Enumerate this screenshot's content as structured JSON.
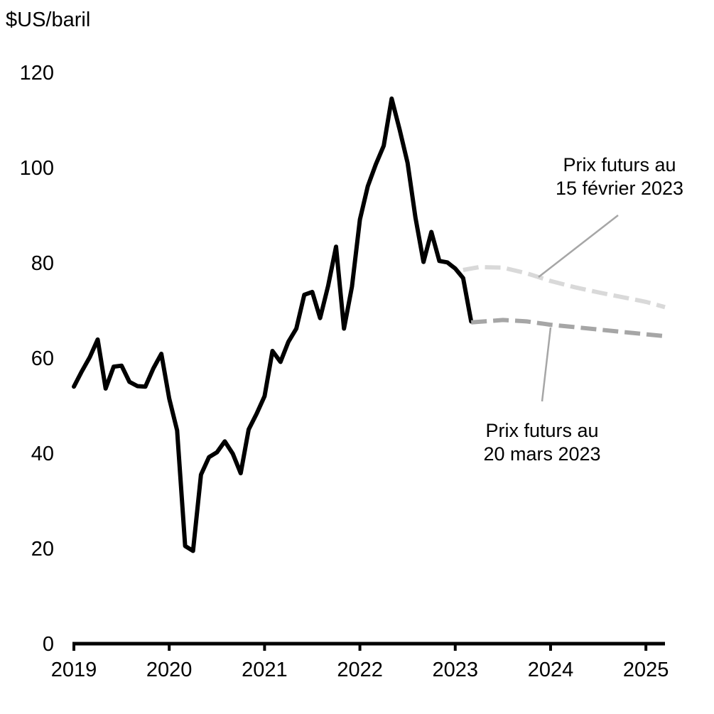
{
  "chart_data": {
    "type": "line",
    "title": "",
    "ylabel": "$US/baril",
    "xlabel": "",
    "xlim": [
      2019.0,
      2025.2
    ],
    "ylim": [
      0,
      120
    ],
    "yticks": [
      0,
      20,
      40,
      60,
      80,
      100,
      120
    ],
    "xticks": [
      "2019",
      "2020",
      "2021",
      "2022",
      "2023",
      "2024",
      "2025"
    ],
    "grid": false,
    "legend": "none",
    "series": [
      {
        "name": "",
        "style": "solid",
        "color": "#000000",
        "x": [
          2019.0,
          2019.083,
          2019.167,
          2019.25,
          2019.333,
          2019.417,
          2019.5,
          2019.583,
          2019.667,
          2019.75,
          2019.833,
          2019.917,
          2020.0,
          2020.083,
          2020.167,
          2020.25,
          2020.333,
          2020.417,
          2020.5,
          2020.583,
          2020.667,
          2020.75,
          2020.833,
          2020.917,
          2021.0,
          2021.083,
          2021.167,
          2021.25,
          2021.333,
          2021.417,
          2021.5,
          2021.583,
          2021.667,
          2021.75,
          2021.833,
          2021.917,
          2022.0,
          2022.083,
          2022.167,
          2022.25,
          2022.333,
          2022.417,
          2022.5,
          2022.583,
          2022.667,
          2022.75,
          2022.833,
          2022.917,
          2023.0,
          2023.083,
          2023.167
        ],
        "values": [
          54.0,
          57.2,
          60.2,
          63.9,
          53.6,
          58.2,
          58.4,
          55.0,
          54.1,
          54.0,
          57.8,
          60.9,
          51.5,
          44.8,
          20.5,
          19.5,
          35.5,
          39.2,
          40.2,
          42.5,
          39.9,
          35.8,
          45.0,
          48.3,
          52.0,
          61.5,
          59.2,
          63.4,
          66.2,
          73.3,
          73.9,
          68.4,
          75.2,
          83.4,
          66.2,
          75.0,
          89.1,
          96.1,
          100.7,
          104.6,
          114.5,
          108.0,
          101.0,
          89.5,
          80.2,
          86.5,
          80.4,
          80.1,
          78.8,
          76.8,
          67.7
        ]
      },
      {
        "name": "Prix futurs au 15 février 2023",
        "style": "dashed",
        "color": "#d9d9d9",
        "x": [
          2023.083,
          2023.25,
          2023.5,
          2023.75,
          2024.0,
          2024.25,
          2024.5,
          2024.75,
          2025.0,
          2025.2
        ],
        "values": [
          78.5,
          79.1,
          79.0,
          77.8,
          76.2,
          74.9,
          73.8,
          72.8,
          71.8,
          70.7
        ]
      },
      {
        "name": "Prix futurs au 20 mars 2023",
        "style": "dashed",
        "color": "#a6a6a6",
        "x": [
          2023.167,
          2023.5,
          2023.75,
          2024.0,
          2024.25,
          2024.5,
          2024.75,
          2025.0,
          2025.2
        ],
        "values": [
          67.5,
          68.0,
          67.7,
          67.0,
          66.5,
          66.0,
          65.5,
          65.0,
          64.6
        ]
      }
    ],
    "annotations": [
      {
        "lines": [
          "Prix futurs au",
          "15 février 2023"
        ],
        "series": 1
      },
      {
        "lines": [
          "Prix futurs au",
          "20 mars 2023"
        ],
        "series": 2
      }
    ]
  }
}
